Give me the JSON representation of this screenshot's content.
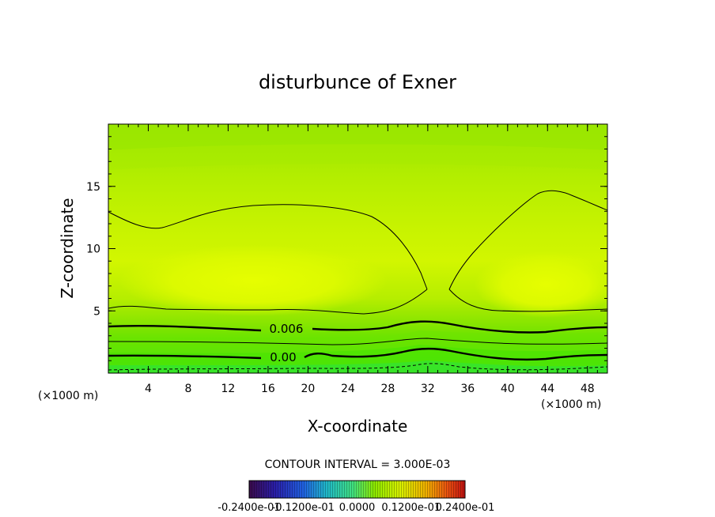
{
  "chart_data": {
    "type": "contour",
    "title": "disturbunce of Exner",
    "xlabel": "X-coordinate",
    "ylabel": "Z-coordinate",
    "x_unit": "(×1000 m)",
    "y_unit": "(×1000 m)",
    "xlim": [
      0,
      50
    ],
    "ylim": [
      0,
      20
    ],
    "x_ticks": [
      4,
      8,
      12,
      16,
      20,
      24,
      28,
      32,
      36,
      40,
      44,
      48
    ],
    "y_ticks": [
      5,
      10,
      15
    ],
    "contour_interval_text": "CONTOUR INTERVAL = 3.000E-03",
    "colorbar_labels": [
      "-0.2400e-01",
      "-0.1200e-01",
      "0.0000",
      "0.1200e-01",
      "0.2400e-01"
    ],
    "contour_labels": [
      {
        "text": "0.006",
        "x": 17,
        "z": 3.6
      },
      {
        "text": "0.00",
        "x": 17,
        "z": 1.3
      }
    ],
    "colors": {
      "top_band": "#9ee800",
      "mid_band": "#d8f800",
      "core": "#e6ff00",
      "low_band": "#5ce800",
      "bottom_band": "#2ee83a"
    }
  }
}
